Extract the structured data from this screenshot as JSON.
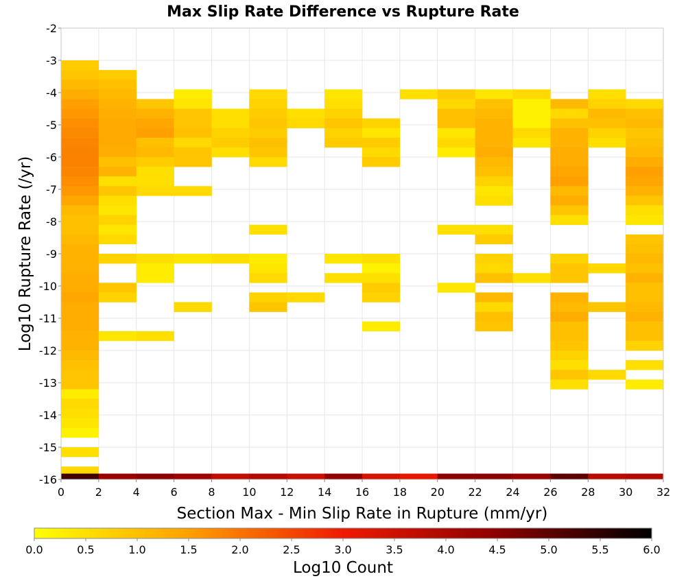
{
  "chart_data": {
    "type": "heatmap",
    "title": "Max Slip Rate Difference vs Rupture Rate",
    "xlabel": "Section Max - Min Slip Rate in Rupture (mm/yr)",
    "ylabel": "Log10 Rupture Rate (/yr)",
    "xlim": [
      0,
      32
    ],
    "ylim": [
      -16,
      -2
    ],
    "x_ticks": [
      "0",
      "2",
      "4",
      "6",
      "8",
      "10",
      "12",
      "14",
      "16",
      "18",
      "20",
      "22",
      "24",
      "26",
      "28",
      "30",
      "32"
    ],
    "y_ticks": [
      "-2",
      "-3",
      "-4",
      "-5",
      "-6",
      "-7",
      "-8",
      "-9",
      "-10",
      "-11",
      "-12",
      "-13",
      "-14",
      "-15",
      "-16"
    ],
    "x_bin_width": 2,
    "y_bin_height": 0.3,
    "grid": true,
    "colorbar": {
      "label": "Log10 Count",
      "min": 0,
      "max": 6,
      "ticks": [
        "0.0",
        "0.5",
        "1.0",
        "1.5",
        "2.0",
        "2.5",
        "3.0",
        "3.5",
        "4.0",
        "4.5",
        "5.0",
        "5.5",
        "6.0"
      ]
    },
    "cells": [
      [
        0,
        -3.15,
        0.8
      ],
      [
        0,
        -3.45,
        0.9
      ],
      [
        0,
        -3.75,
        1.1
      ],
      [
        0,
        -4.05,
        1.3
      ],
      [
        0,
        -4.35,
        1.5
      ],
      [
        0,
        -4.65,
        1.6
      ],
      [
        0,
        -4.95,
        1.7
      ],
      [
        0,
        -5.25,
        1.75
      ],
      [
        0,
        -5.55,
        1.8
      ],
      [
        0,
        -5.85,
        1.85
      ],
      [
        0,
        -6.15,
        1.85
      ],
      [
        0,
        -6.45,
        1.8
      ],
      [
        0,
        -6.75,
        1.7
      ],
      [
        0,
        -7.05,
        1.6
      ],
      [
        0,
        -7.35,
        1.4
      ],
      [
        0,
        -7.65,
        1.1
      ],
      [
        0,
        -7.95,
        1.0
      ],
      [
        0,
        -8.25,
        1.0
      ],
      [
        0,
        -8.55,
        1.1
      ],
      [
        0,
        -8.85,
        1.2
      ],
      [
        0,
        -9.15,
        1.2
      ],
      [
        0,
        -9.45,
        1.2
      ],
      [
        0,
        -9.75,
        1.3
      ],
      [
        0,
        -10.05,
        1.3
      ],
      [
        0,
        -10.35,
        1.4
      ],
      [
        0,
        -10.65,
        1.3
      ],
      [
        0,
        -10.95,
        1.3
      ],
      [
        0,
        -11.25,
        1.3
      ],
      [
        0,
        -11.55,
        1.2
      ],
      [
        0,
        -11.85,
        1.2
      ],
      [
        0,
        -12.15,
        1.1
      ],
      [
        0,
        -12.45,
        1.0
      ],
      [
        0,
        -12.75,
        0.9
      ],
      [
        0,
        -13.05,
        0.9
      ],
      [
        0,
        -13.35,
        0.3
      ],
      [
        0,
        -13.65,
        0.6
      ],
      [
        0,
        -13.95,
        0.5
      ],
      [
        0,
        -14.25,
        0.4
      ],
      [
        0,
        -14.55,
        0.2
      ],
      [
        0,
        -15.15,
        0.5
      ],
      [
        0,
        -15.75,
        0.6
      ],
      [
        2,
        -3.45,
        0.8
      ],
      [
        2,
        -3.75,
        1.0
      ],
      [
        2,
        -4.05,
        1.1
      ],
      [
        2,
        -4.35,
        1.2
      ],
      [
        2,
        -4.65,
        1.3
      ],
      [
        2,
        -4.95,
        1.35
      ],
      [
        2,
        -5.25,
        1.35
      ],
      [
        2,
        -5.55,
        1.35
      ],
      [
        2,
        -5.85,
        1.3
      ],
      [
        2,
        -6.15,
        1.0
      ],
      [
        2,
        -6.45,
        1.2
      ],
      [
        2,
        -6.75,
        0.5
      ],
      [
        2,
        -7.05,
        0.9
      ],
      [
        2,
        -7.35,
        0.5
      ],
      [
        2,
        -7.65,
        0.4
      ],
      [
        2,
        -7.95,
        0.7
      ],
      [
        2,
        -8.25,
        0.4
      ],
      [
        2,
        -8.55,
        0.6
      ],
      [
        2,
        -9.15,
        0.7
      ],
      [
        2,
        -10.05,
        0.9
      ],
      [
        2,
        -10.35,
        0.7
      ],
      [
        2,
        -11.55,
        0.4
      ],
      [
        4,
        -4.35,
        0.9
      ],
      [
        4,
        -4.65,
        1.2
      ],
      [
        4,
        -4.95,
        1.4
      ],
      [
        4,
        -5.25,
        1.5
      ],
      [
        4,
        -5.55,
        1.0
      ],
      [
        4,
        -5.85,
        1.1
      ],
      [
        4,
        -6.15,
        0.8
      ],
      [
        4,
        -6.45,
        0.5
      ],
      [
        4,
        -6.75,
        0.5
      ],
      [
        4,
        -7.05,
        0.6
      ],
      [
        4,
        -9.15,
        0.5
      ],
      [
        4,
        -9.45,
        0.3
      ],
      [
        4,
        -9.75,
        0.3
      ],
      [
        4,
        -11.55,
        0.5
      ],
      [
        6,
        -4.05,
        0.3
      ],
      [
        6,
        -4.35,
        0.4
      ],
      [
        6,
        -4.65,
        0.9
      ],
      [
        6,
        -4.95,
        0.9
      ],
      [
        6,
        -5.25,
        1.0
      ],
      [
        6,
        -5.55,
        0.6
      ],
      [
        6,
        -5.85,
        0.9
      ],
      [
        6,
        -6.15,
        0.9
      ],
      [
        6,
        -7.05,
        0.6
      ],
      [
        6,
        -9.15,
        0.4
      ],
      [
        6,
        -10.65,
        0.6
      ],
      [
        8,
        -4.65,
        0.5
      ],
      [
        8,
        -4.95,
        0.5
      ],
      [
        8,
        -5.25,
        0.7
      ],
      [
        8,
        -5.55,
        0.8
      ],
      [
        8,
        -5.85,
        0.5
      ],
      [
        8,
        -9.15,
        0.5
      ],
      [
        10,
        -4.05,
        0.6
      ],
      [
        10,
        -4.35,
        0.7
      ],
      [
        10,
        -4.65,
        0.8
      ],
      [
        10,
        -4.95,
        0.9
      ],
      [
        10,
        -5.25,
        0.8
      ],
      [
        10,
        -5.55,
        1.0
      ],
      [
        10,
        -5.85,
        0.9
      ],
      [
        10,
        -6.15,
        0.6
      ],
      [
        10,
        -8.25,
        0.5
      ],
      [
        10,
        -9.15,
        0.3
      ],
      [
        10,
        -9.45,
        0.4
      ],
      [
        10,
        -9.75,
        0.6
      ],
      [
        10,
        -10.35,
        0.7
      ],
      [
        10,
        -10.65,
        0.9
      ],
      [
        12,
        -4.65,
        0.5
      ],
      [
        12,
        -4.95,
        0.6
      ],
      [
        12,
        -10.35,
        0.6
      ],
      [
        14,
        -4.05,
        0.4
      ],
      [
        14,
        -4.35,
        0.5
      ],
      [
        14,
        -4.65,
        0.7
      ],
      [
        14,
        -4.95,
        0.9
      ],
      [
        14,
        -5.25,
        0.7
      ],
      [
        14,
        -5.55,
        0.8
      ],
      [
        14,
        -9.15,
        0.4
      ],
      [
        14,
        -9.75,
        0.5
      ],
      [
        16,
        -4.95,
        0.7
      ],
      [
        16,
        -5.25,
        0.4
      ],
      [
        16,
        -5.55,
        0.8
      ],
      [
        16,
        -5.85,
        0.6
      ],
      [
        16,
        -6.15,
        0.8
      ],
      [
        16,
        -9.15,
        0.5
      ],
      [
        16,
        -9.45,
        0.2
      ],
      [
        16,
        -9.75,
        0.5
      ],
      [
        16,
        -10.05,
        0.8
      ],
      [
        16,
        -10.35,
        0.7
      ],
      [
        16,
        -11.25,
        0.3
      ],
      [
        18,
        -4.05,
        0.5
      ],
      [
        20,
        -4.05,
        0.8
      ],
      [
        20,
        -4.35,
        0.6
      ],
      [
        20,
        -4.65,
        1.0
      ],
      [
        20,
        -4.95,
        1.0
      ],
      [
        20,
        -5.25,
        0.4
      ],
      [
        20,
        -5.55,
        0.6
      ],
      [
        20,
        -5.85,
        0.3
      ],
      [
        20,
        -8.25,
        0.5
      ],
      [
        20,
        -10.05,
        0.4
      ],
      [
        22,
        -4.05,
        0.4
      ],
      [
        22,
        -4.35,
        1.0
      ],
      [
        22,
        -4.65,
        1.1
      ],
      [
        22,
        -4.95,
        1.2
      ],
      [
        22,
        -5.25,
        1.2
      ],
      [
        22,
        -5.55,
        1.2
      ],
      [
        22,
        -5.85,
        1.3
      ],
      [
        22,
        -6.15,
        1.1
      ],
      [
        22,
        -6.45,
        1.0
      ],
      [
        22,
        -6.75,
        0.7
      ],
      [
        22,
        -7.05,
        0.4
      ],
      [
        22,
        -7.35,
        0.5
      ],
      [
        22,
        -8.25,
        0.5
      ],
      [
        22,
        -8.55,
        0.8
      ],
      [
        22,
        -9.15,
        0.7
      ],
      [
        22,
        -9.45,
        0.6
      ],
      [
        22,
        -9.75,
        1.0
      ],
      [
        22,
        -10.35,
        1.1
      ],
      [
        22,
        -10.65,
        0.6
      ],
      [
        22,
        -10.95,
        1.0
      ],
      [
        22,
        -11.25,
        0.9
      ],
      [
        24,
        -4.05,
        0.6
      ],
      [
        24,
        -4.35,
        0.2
      ],
      [
        24,
        -4.65,
        0.2
      ],
      [
        24,
        -4.95,
        0.2
      ],
      [
        24,
        -5.25,
        0.6
      ],
      [
        24,
        -5.55,
        0.4
      ],
      [
        24,
        -9.75,
        0.5
      ],
      [
        26,
        -4.35,
        1.1
      ],
      [
        26,
        -4.65,
        0.6
      ],
      [
        26,
        -4.95,
        1.0
      ],
      [
        26,
        -5.25,
        1.2
      ],
      [
        26,
        -5.55,
        1.2
      ],
      [
        26,
        -5.85,
        1.3
      ],
      [
        26,
        -6.15,
        1.3
      ],
      [
        26,
        -6.45,
        1.4
      ],
      [
        26,
        -6.75,
        1.5
      ],
      [
        26,
        -7.05,
        1.1
      ],
      [
        26,
        -7.35,
        1.3
      ],
      [
        26,
        -7.65,
        0.9
      ],
      [
        26,
        -7.95,
        0.5
      ],
      [
        26,
        -9.15,
        0.7
      ],
      [
        26,
        -9.45,
        0.9
      ],
      [
        26,
        -9.75,
        0.9
      ],
      [
        26,
        -10.35,
        1.2
      ],
      [
        26,
        -10.65,
        1.1
      ],
      [
        26,
        -10.95,
        1.3
      ],
      [
        26,
        -11.25,
        1.0
      ],
      [
        26,
        -11.55,
        1.0
      ],
      [
        26,
        -11.85,
        0.9
      ],
      [
        26,
        -12.15,
        0.7
      ],
      [
        26,
        -12.45,
        0.5
      ],
      [
        26,
        -12.75,
        0.9
      ],
      [
        26,
        -13.05,
        0.5
      ],
      [
        28,
        -4.05,
        0.5
      ],
      [
        28,
        -4.35,
        0.7
      ],
      [
        28,
        -4.65,
        1.1
      ],
      [
        28,
        -4.95,
        1.0
      ],
      [
        28,
        -5.25,
        0.7
      ],
      [
        28,
        -5.55,
        0.5
      ],
      [
        28,
        -9.45,
        0.6
      ],
      [
        28,
        -10.65,
        0.9
      ],
      [
        28,
        -12.75,
        0.6
      ],
      [
        30,
        -4.35,
        0.6
      ],
      [
        30,
        -4.65,
        1.0
      ],
      [
        30,
        -4.95,
        1.1
      ],
      [
        30,
        -5.25,
        0.9
      ],
      [
        30,
        -5.55,
        1.0
      ],
      [
        30,
        -5.85,
        1.1
      ],
      [
        30,
        -6.15,
        1.3
      ],
      [
        30,
        -6.45,
        1.5
      ],
      [
        30,
        -6.75,
        1.4
      ],
      [
        30,
        -7.05,
        1.2
      ],
      [
        30,
        -7.35,
        0.9
      ],
      [
        30,
        -7.65,
        0.5
      ],
      [
        30,
        -7.95,
        0.4
      ],
      [
        30,
        -8.55,
        0.9
      ],
      [
        30,
        -8.85,
        1.0
      ],
      [
        30,
        -9.15,
        1.1
      ],
      [
        30,
        -9.45,
        1.0
      ],
      [
        30,
        -9.75,
        1.2
      ],
      [
        30,
        -10.05,
        1.0
      ],
      [
        30,
        -10.35,
        1.0
      ],
      [
        30,
        -10.65,
        1.1
      ],
      [
        30,
        -10.95,
        1.2
      ],
      [
        30,
        -11.25,
        1.0
      ],
      [
        30,
        -11.55,
        1.0
      ],
      [
        30,
        -11.85,
        0.7
      ],
      [
        30,
        -12.45,
        0.5
      ],
      [
        30,
        -13.05,
        0.3
      ]
    ],
    "bottom_row": {
      "y": -16,
      "values": [
        5.3,
        4.3,
        4.5,
        4.2,
        3.7,
        3.9,
        3.6,
        4.4,
        3.4,
        3.1,
        4.5,
        4.5,
        4.3,
        5.0,
        3.8,
        3.9
      ]
    }
  }
}
